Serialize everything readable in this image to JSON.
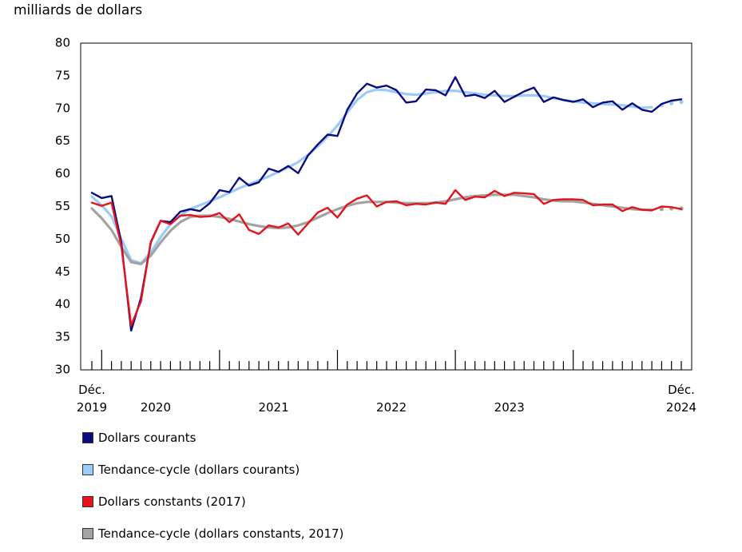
{
  "chart_data": {
    "type": "line",
    "title": "milliards de dollars",
    "categories": [
      "Déc. 2019",
      null,
      null,
      null,
      null,
      null,
      "2020",
      null,
      null,
      null,
      null,
      null,
      null,
      null,
      null,
      null,
      null,
      null,
      "2021",
      null,
      null,
      null,
      null,
      null,
      null,
      null,
      null,
      null,
      null,
      null,
      "2022",
      null,
      null,
      null,
      null,
      null,
      null,
      null,
      null,
      null,
      null,
      null,
      "2023",
      null,
      null,
      null,
      null,
      null,
      null,
      null,
      null,
      null,
      null,
      null,
      null,
      null,
      null,
      null,
      null,
      null,
      "Déc. 2024"
    ],
    "ylim": [
      30,
      80
    ],
    "yticks": [
      30,
      35,
      40,
      45,
      50,
      55,
      60,
      65,
      70,
      75,
      80
    ],
    "grid": false,
    "series": [
      {
        "name": "Dollars courants",
        "color": "#0b0b7e",
        "values": [
          57.1,
          56.3,
          56.6,
          49.5,
          36.0,
          41.0,
          49.5,
          52.8,
          52.6,
          54.2,
          54.6,
          54.3,
          55.5,
          57.5,
          57.2,
          59.4,
          58.2,
          58.7,
          60.8,
          60.3,
          61.2,
          60.1,
          62.8,
          64.5,
          66.0,
          65.8,
          69.8,
          72.3,
          73.8,
          73.2,
          73.5,
          72.8,
          70.9,
          71.1,
          72.9,
          72.8,
          72.0,
          74.8,
          71.9,
          72.1,
          71.6,
          72.7,
          71.0,
          71.8,
          72.6,
          73.2,
          71.0,
          71.7,
          71.3,
          71.0,
          71.4,
          70.2,
          70.9,
          71.1,
          69.8,
          70.8,
          69.8,
          69.5,
          70.7,
          71.2,
          71.4
        ]
      },
      {
        "name": "Tendance-cycle (dollars courants)",
        "color": "#9ccbf7",
        "values": [
          56.5,
          55.2,
          53.5,
          50.0,
          46.8,
          46.3,
          48.0,
          50.3,
          52.3,
          53.6,
          54.6,
          55.2,
          55.8,
          56.4,
          57.1,
          57.8,
          58.4,
          59.0,
          59.6,
          60.3,
          61.0,
          61.8,
          62.9,
          64.2,
          65.7,
          67.4,
          69.4,
          71.3,
          72.5,
          72.9,
          72.8,
          72.5,
          72.2,
          72.1,
          72.3,
          72.5,
          72.7,
          72.7,
          72.5,
          72.3,
          72.1,
          72.0,
          71.9,
          71.9,
          72.0,
          72.0,
          71.9,
          71.6,
          71.3,
          71.1,
          70.9,
          70.8,
          70.7,
          70.6,
          70.5,
          70.3,
          70.1,
          70.2,
          70.5,
          70.8,
          71.0
        ]
      },
      {
        "name": "Dollars constants (2017)",
        "color": "#e3141c",
        "values": [
          55.6,
          55.1,
          55.6,
          49.0,
          36.8,
          40.5,
          49.6,
          52.8,
          52.3,
          53.6,
          53.7,
          53.4,
          53.5,
          54.0,
          52.6,
          53.8,
          51.4,
          50.8,
          52.1,
          51.8,
          52.4,
          50.7,
          52.4,
          54.1,
          54.8,
          53.3,
          55.3,
          56.2,
          56.7,
          55.0,
          55.7,
          55.8,
          55.2,
          55.4,
          55.3,
          55.6,
          55.4,
          57.5,
          56.0,
          56.5,
          56.4,
          57.4,
          56.6,
          57.1,
          57.0,
          56.9,
          55.4,
          56.0,
          56.1,
          56.1,
          56.0,
          55.2,
          55.3,
          55.3,
          54.3,
          54.9,
          54.5,
          54.4,
          55.0,
          54.9,
          54.6
        ]
      },
      {
        "name": "Tendance-cycle (dollars constants, 2017)",
        "color": "#a3a3a3",
        "values": [
          54.7,
          53.2,
          51.4,
          48.8,
          46.5,
          46.2,
          47.5,
          49.5,
          51.3,
          52.6,
          53.4,
          53.6,
          53.6,
          53.4,
          53.1,
          52.7,
          52.3,
          52.0,
          51.8,
          51.7,
          51.8,
          52.1,
          52.6,
          53.3,
          54.0,
          54.6,
          55.1,
          55.5,
          55.7,
          55.7,
          55.7,
          55.6,
          55.5,
          55.5,
          55.5,
          55.6,
          55.8,
          56.1,
          56.4,
          56.6,
          56.7,
          56.8,
          56.8,
          56.8,
          56.6,
          56.4,
          56.1,
          55.9,
          55.8,
          55.8,
          55.6,
          55.4,
          55.2,
          55.0,
          54.8,
          54.6,
          54.5,
          54.5,
          54.6,
          54.7,
          54.7
        ]
      }
    ]
  }
}
